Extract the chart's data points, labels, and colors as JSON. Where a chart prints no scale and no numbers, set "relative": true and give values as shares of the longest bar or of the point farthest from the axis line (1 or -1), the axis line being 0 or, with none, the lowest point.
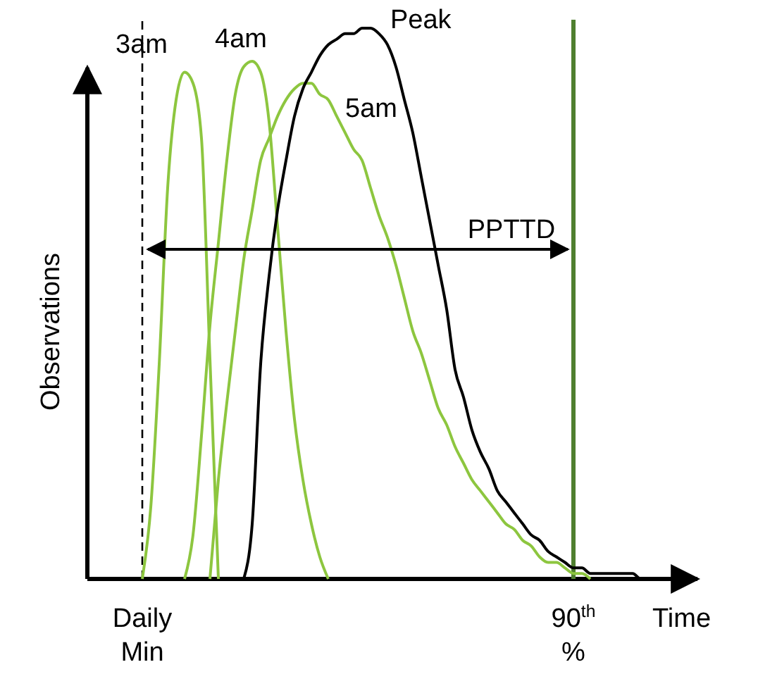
{
  "chart_data": {
    "type": "line",
    "relative": true,
    "xlabel": "Time",
    "ylabel": "Observations",
    "categories": [
      "Daily Min",
      null,
      null,
      null,
      null,
      null,
      null,
      null,
      null,
      null,
      null,
      null,
      null,
      null,
      null,
      null,
      null,
      null,
      null,
      null,
      null,
      null,
      null,
      null,
      null,
      null,
      null,
      null,
      null,
      null,
      null,
      null,
      null,
      null,
      null,
      null,
      null,
      null,
      null,
      null,
      null,
      null,
      null,
      null,
      null,
      null,
      null,
      null,
      null,
      null,
      null,
      "90$^{th}$ %",
      null,
      null,
      null,
      null,
      null,
      null,
      null,
      null,
      null,
      null,
      null,
      null,
      null
    ],
    "series": [
      {
        "name": "3am",
        "color": "#8dc63f",
        "values": [
          0,
          0.13,
          0.39,
          0.71,
          0.87,
          0.92,
          0.9,
          0.8,
          0.4,
          0,
          null,
          null,
          null,
          null,
          null,
          null,
          null,
          null,
          null,
          null,
          null,
          null,
          null,
          null,
          null,
          null,
          null,
          null,
          null,
          null,
          null,
          null,
          null,
          null,
          null,
          null,
          null,
          null,
          null,
          null,
          null,
          null,
          null,
          null,
          null,
          null,
          null,
          null,
          null,
          null,
          null,
          null,
          null,
          null,
          null,
          null,
          null,
          null,
          null,
          null,
          null,
          null,
          null,
          null,
          null
        ]
      },
      {
        "name": "4am",
        "color": "#8dc63f",
        "values": [
          null,
          null,
          null,
          null,
          null,
          0,
          0.08,
          0.26,
          0.46,
          0.61,
          0.76,
          0.88,
          0.93,
          0.94,
          0.92,
          0.83,
          0.64,
          0.45,
          0.29,
          0.18,
          0.1,
          0.04,
          0,
          null,
          null,
          null,
          null,
          null,
          null,
          null,
          null,
          null,
          null,
          null,
          null,
          null,
          null,
          null,
          null,
          null,
          null,
          null,
          null,
          null,
          null,
          null,
          null,
          null,
          null,
          null,
          null,
          null,
          null,
          null,
          null,
          null,
          null,
          null,
          null,
          null,
          null,
          null,
          null,
          null,
          null
        ]
      },
      {
        "name": "5am",
        "color": "#8dc63f",
        "values": [
          null,
          null,
          null,
          null,
          null,
          null,
          null,
          null,
          0,
          0.18,
          0.32,
          0.45,
          0.58,
          0.67,
          0.76,
          0.8,
          0.84,
          0.87,
          0.89,
          0.9,
          0.9,
          0.88,
          0.87,
          0.84,
          0.81,
          0.78,
          0.76,
          0.71,
          0.66,
          0.62,
          0.57,
          0.51,
          0.45,
          0.41,
          0.36,
          0.31,
          0.28,
          0.24,
          0.21,
          0.18,
          0.16,
          0.14,
          0.12,
          0.1,
          0.09,
          0.07,
          0.06,
          0.04,
          0.03,
          0.03,
          0.02,
          0.01,
          0.01,
          0,
          null,
          null,
          null,
          null,
          null,
          null,
          null,
          null,
          null,
          null,
          null
        ]
      },
      {
        "name": "Peak",
        "color": "#000000",
        "values": [
          null,
          null,
          null,
          null,
          null,
          null,
          null,
          null,
          null,
          null,
          null,
          null,
          0,
          0.1,
          0.39,
          0.55,
          0.67,
          0.76,
          0.84,
          0.89,
          0.92,
          0.95,
          0.97,
          0.98,
          0.99,
          0.99,
          1,
          1,
          0.99,
          0.97,
          0.93,
          0.87,
          0.81,
          0.73,
          0.65,
          0.57,
          0.49,
          0.38,
          0.33,
          0.27,
          0.23,
          0.2,
          0.16,
          0.14,
          0.12,
          0.1,
          0.08,
          0.07,
          0.05,
          0.04,
          0.03,
          0.02,
          0.02,
          0.01,
          0.01,
          0.01,
          0.01,
          0.01,
          0.01,
          0,
          0,
          0,
          0,
          0,
          0
        ]
      }
    ],
    "ref_lines": [
      {
        "axis": "x",
        "value": "Daily Min",
        "color": "#000000",
        "line_style": "dashed"
      },
      {
        "axis": "x",
        "value": "90$^{th}$ %",
        "color": "#4f7f2f",
        "line_style": "solid"
      }
    ],
    "annotations": [
      "PPTTD"
    ]
  }
}
